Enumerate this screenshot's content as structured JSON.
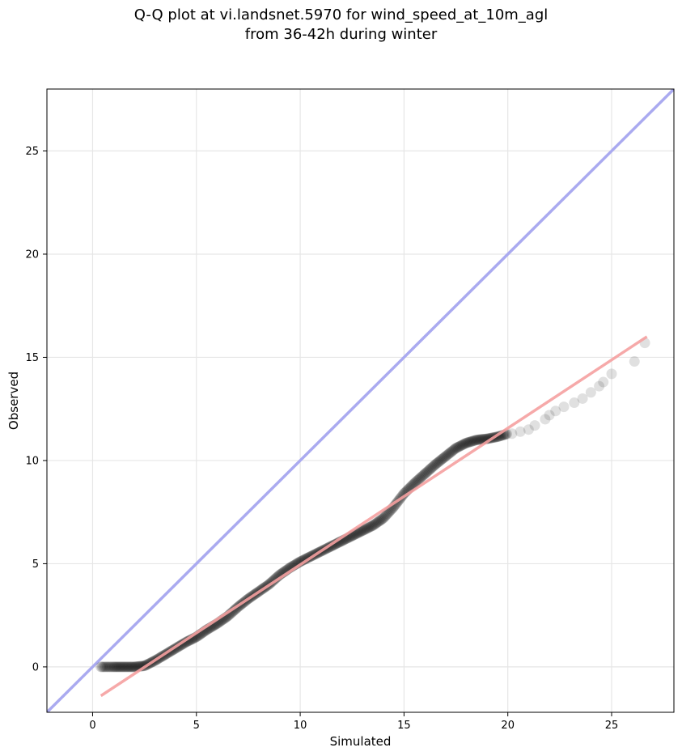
{
  "title_line1": "Q-Q plot at vi.landsnet.5970 for wind_speed_at_10m_agl",
  "title_line2": "from 36-42h during winter",
  "chart_data": {
    "type": "scatter",
    "title": "Q-Q plot at vi.landsnet.5970 for wind_speed_at_10m_agl from 36-42h during winter",
    "xlabel": "Simulated",
    "ylabel": "Observed",
    "xlim": [
      -2.2,
      28
    ],
    "ylim": [
      -2.2,
      28
    ],
    "xticks": [
      0,
      5,
      10,
      15,
      20,
      25
    ],
    "yticks": [
      0,
      5,
      10,
      15,
      20,
      25
    ],
    "grid": true,
    "colors": {
      "points": "#000000",
      "identity_line": "#aaaaf0",
      "fit_line": "#f5a0a0"
    },
    "quantile_curve": [
      [
        0.4,
        0.0
      ],
      [
        1.0,
        0.0
      ],
      [
        1.5,
        0.0
      ],
      [
        2.0,
        0.0
      ],
      [
        2.5,
        0.05
      ],
      [
        3.0,
        0.3
      ],
      [
        3.5,
        0.6
      ],
      [
        4.0,
        0.9
      ],
      [
        4.5,
        1.2
      ],
      [
        5.0,
        1.45
      ],
      [
        5.5,
        1.8
      ],
      [
        6.0,
        2.1
      ],
      [
        6.5,
        2.45
      ],
      [
        7.0,
        2.9
      ],
      [
        7.5,
        3.3
      ],
      [
        8.0,
        3.65
      ],
      [
        8.5,
        4.0
      ],
      [
        9.0,
        4.45
      ],
      [
        9.5,
        4.8
      ],
      [
        10.0,
        5.1
      ],
      [
        10.5,
        5.35
      ],
      [
        11.0,
        5.6
      ],
      [
        11.5,
        5.85
      ],
      [
        12.0,
        6.1
      ],
      [
        12.5,
        6.35
      ],
      [
        13.0,
        6.6
      ],
      [
        13.5,
        6.85
      ],
      [
        14.0,
        7.2
      ],
      [
        14.5,
        7.75
      ],
      [
        15.0,
        8.4
      ],
      [
        15.5,
        8.9
      ],
      [
        16.0,
        9.35
      ],
      [
        16.5,
        9.8
      ],
      [
        17.0,
        10.2
      ],
      [
        17.5,
        10.6
      ],
      [
        18.0,
        10.85
      ],
      [
        18.5,
        11.0
      ],
      [
        19.0,
        11.05
      ],
      [
        19.5,
        11.15
      ],
      [
        20.0,
        11.3
      ]
    ],
    "tail_points": [
      [
        20.2,
        11.3
      ],
      [
        20.6,
        11.4
      ],
      [
        21.0,
        11.5
      ],
      [
        21.3,
        11.7
      ],
      [
        21.8,
        12.0
      ],
      [
        22.0,
        12.2
      ],
      [
        22.3,
        12.4
      ],
      [
        22.7,
        12.6
      ],
      [
        23.2,
        12.8
      ],
      [
        23.6,
        13.0
      ],
      [
        24.0,
        13.3
      ],
      [
        24.4,
        13.6
      ],
      [
        24.6,
        13.8
      ],
      [
        25.0,
        14.2
      ],
      [
        26.1,
        14.8
      ],
      [
        26.6,
        15.7
      ]
    ],
    "identity_line": [
      [
        -2.2,
        -2.2
      ],
      [
        28,
        28
      ]
    ],
    "fit_line": [
      [
        0.4,
        -1.4
      ],
      [
        26.7,
        16.0
      ]
    ]
  }
}
